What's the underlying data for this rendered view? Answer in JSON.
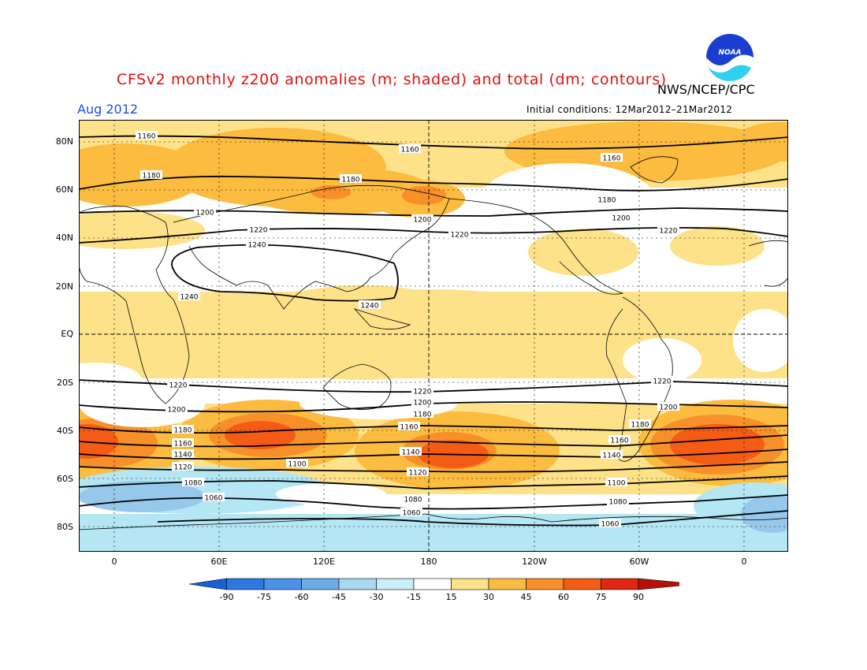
{
  "title": "CFSv2 monthly z200 anomalies (m; shaded) and total (dm; contours)",
  "agency": "NWS/NCEP/CPC",
  "period": "Aug 2012",
  "initial_conditions": "Initial conditions: 12Mar2012–21Mar2012",
  "logo_text": "NOAA",
  "lat_labels": [
    "80N",
    "60N",
    "40N",
    "20N",
    "EQ",
    "20S",
    "40S",
    "60S",
    "80S"
  ],
  "lon_labels": [
    "0",
    "60E",
    "120E",
    "180",
    "120W",
    "60W",
    "0"
  ],
  "colorbar": {
    "labels": [
      "-90",
      "-75",
      "-60",
      "-45",
      "-30",
      "-15",
      "15",
      "30",
      "45",
      "60",
      "75",
      "90"
    ],
    "colors": [
      "#1860d8",
      "#2c78e0",
      "#4a92e8",
      "#6cace8",
      "#a6d8f0",
      "#c8eef8",
      "#ffffff",
      "#fde28a",
      "#fbbc40",
      "#f8902a",
      "#f45c16",
      "#e02810",
      "#b81008"
    ]
  },
  "map_colors": {
    "light_yellow": "#fde28a",
    "yellow_orange": "#fbbc40",
    "orange": "#f8902a",
    "red_orange": "#f45c16",
    "light_blue": "#b4e6f4",
    "blue": "#96c8ec"
  },
  "contour_labels": [
    "1160",
    "1160",
    "1160",
    "1180",
    "1180",
    "1180",
    "1200",
    "1200",
    "1200",
    "1220",
    "1220",
    "1220",
    "1240",
    "1240",
    "1240",
    "1220",
    "1220",
    "1220",
    "1200",
    "1200",
    "1200",
    "1180",
    "1180",
    "1180",
    "1160",
    "1160",
    "1160",
    "1140",
    "1140",
    "1140",
    "1120",
    "1120",
    "1100",
    "1100",
    "1080",
    "1080",
    "1080",
    "1060",
    "1060",
    "1060"
  ]
}
